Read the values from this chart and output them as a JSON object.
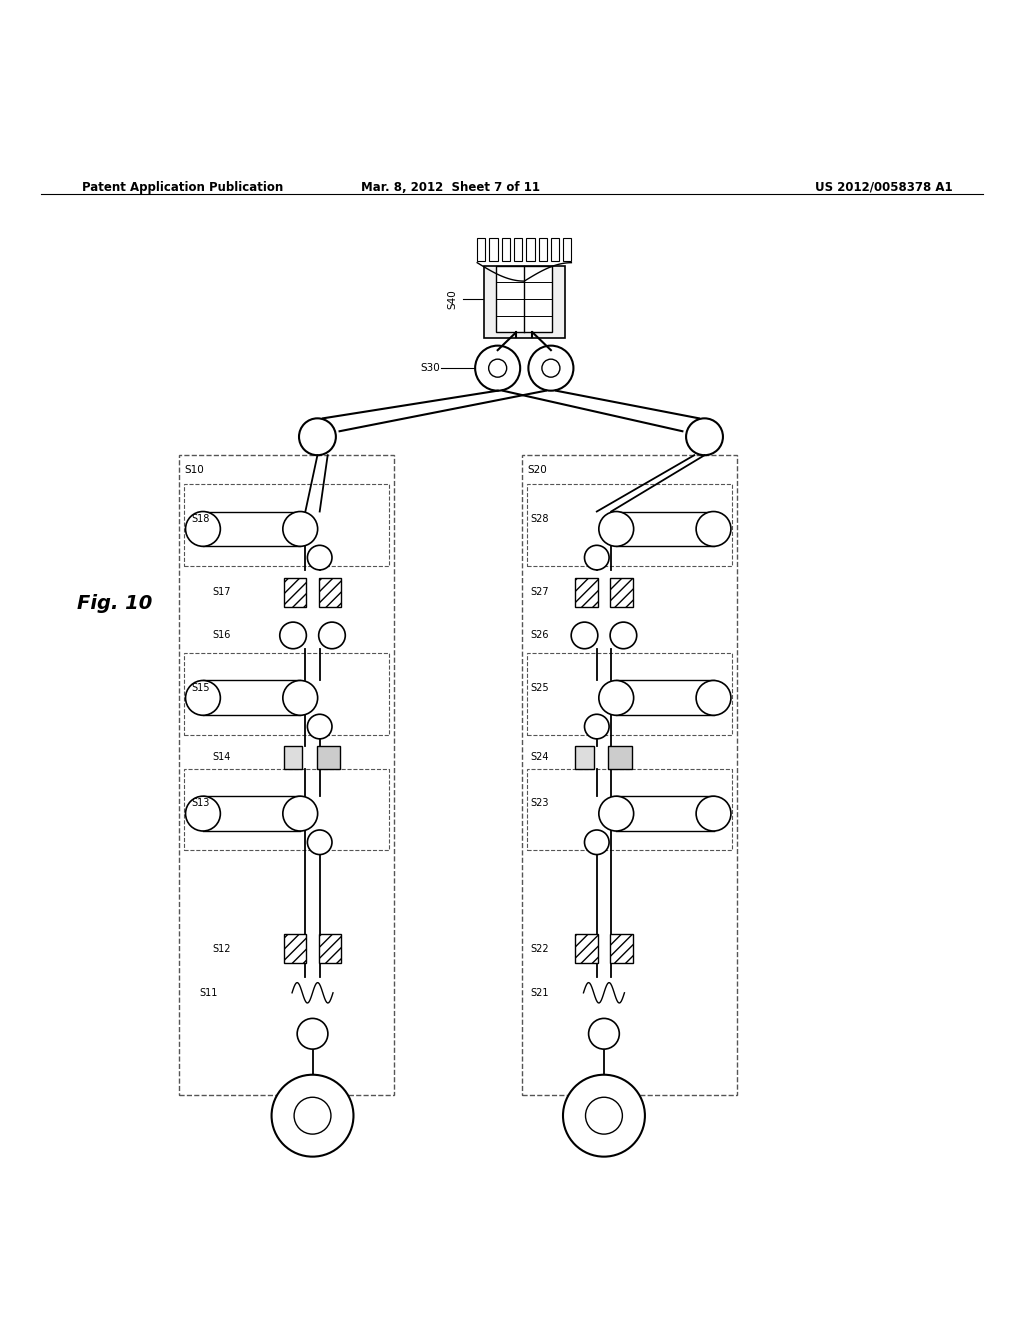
{
  "title_left": "Patent Application Publication",
  "title_mid": "Mar. 8, 2012  Sheet 7 of 11",
  "title_right": "US 2012/0058378 A1",
  "fig_label": "Fig. 10",
  "bg_color": "#ffffff",
  "line_color": "#000000"
}
